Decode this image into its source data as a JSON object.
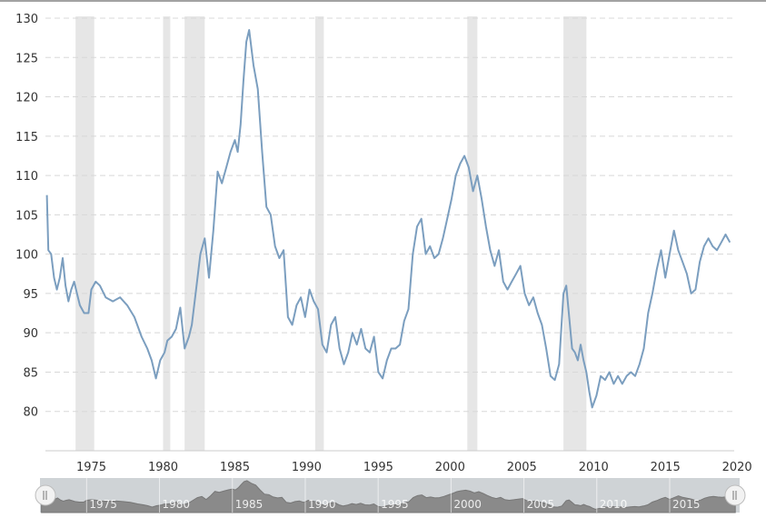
{
  "chart_data": {
    "type": "line",
    "title": "",
    "xlabel": "",
    "ylabel": "",
    "xlim": [
      1971.8,
      2019.8
    ],
    "ylim": [
      75,
      130
    ],
    "y_ticks": [
      80,
      85,
      90,
      95,
      100,
      105,
      110,
      115,
      120,
      125,
      130
    ],
    "x_ticks": [
      1975,
      1980,
      1985,
      1990,
      1995,
      2000,
      2005,
      2010,
      2015,
      2020
    ],
    "y_tick_labels": [
      "80",
      "85",
      "90",
      "95",
      "100",
      "105",
      "110",
      "115",
      "120",
      "125",
      "130"
    ],
    "x_tick_labels": [
      "1975",
      "1980",
      "1985",
      "1990",
      "1995",
      "2000",
      "2005",
      "2010",
      "2015",
      "2020"
    ],
    "grid": "horizontal-dashed",
    "legend": "none",
    "recessions": [
      {
        "start": 1973.9,
        "end": 1975.2
      },
      {
        "start": 1980.0,
        "end": 1980.5
      },
      {
        "start": 1981.5,
        "end": 1982.9
      },
      {
        "start": 1990.6,
        "end": 1991.2
      },
      {
        "start": 2001.2,
        "end": 2001.9
      },
      {
        "start": 2007.9,
        "end": 2009.5
      }
    ],
    "series": [
      {
        "x": [
          1971.9,
          1972.0,
          1972.2,
          1972.4,
          1972.6,
          1972.8,
          1973.0,
          1973.2,
          1973.4,
          1973.6,
          1973.8,
          1974.0,
          1974.2,
          1974.5,
          1974.8,
          1975.0,
          1975.3,
          1975.6,
          1976.0,
          1976.5,
          1977.0,
          1977.5,
          1978.0,
          1978.5,
          1978.9,
          1979.2,
          1979.5,
          1979.8,
          1980.1,
          1980.3,
          1980.6,
          1980.9,
          1981.2,
          1981.5,
          1981.8,
          1982.0,
          1982.3,
          1982.6,
          1982.9,
          1983.2,
          1983.5,
          1983.8,
          1984.1,
          1984.4,
          1984.7,
          1985.0,
          1985.2,
          1985.4,
          1985.6,
          1985.8,
          1986.0,
          1986.3,
          1986.6,
          1986.9,
          1987.2,
          1987.5,
          1987.8,
          1988.1,
          1988.4,
          1988.7,
          1989.0,
          1989.3,
          1989.6,
          1989.9,
          1990.2,
          1990.5,
          1990.8,
          1991.1,
          1991.4,
          1991.7,
          1992.0,
          1992.3,
          1992.6,
          1992.9,
          1993.2,
          1993.5,
          1993.8,
          1994.1,
          1994.4,
          1994.7,
          1995.0,
          1995.3,
          1995.6,
          1995.9,
          1996.2,
          1996.5,
          1996.8,
          1997.1,
          1997.4,
          1997.7,
          1998.0,
          1998.3,
          1998.6,
          1998.9,
          1999.2,
          1999.5,
          1999.8,
          2000.1,
          2000.4,
          2000.7,
          2001.0,
          2001.3,
          2001.6,
          2001.9,
          2002.2,
          2002.5,
          2002.8,
          2003.1,
          2003.4,
          2003.7,
          2004.0,
          2004.3,
          2004.6,
          2004.9,
          2005.2,
          2005.5,
          2005.8,
          2006.1,
          2006.4,
          2006.7,
          2007.0,
          2007.3,
          2007.6,
          2007.9,
          2008.1,
          2008.3,
          2008.5,
          2008.7,
          2008.9,
          2009.1,
          2009.3,
          2009.5,
          2009.7,
          2009.9,
          2010.2,
          2010.5,
          2010.8,
          2011.1,
          2011.4,
          2011.7,
          2012.0,
          2012.3,
          2012.6,
          2012.9,
          2013.2,
          2013.5,
          2013.8,
          2014.1,
          2014.4,
          2014.7,
          2015.0,
          2015.3,
          2015.6,
          2015.9,
          2016.2,
          2016.5,
          2016.8,
          2017.1,
          2017.4,
          2017.7,
          2018.0,
          2018.3,
          2018.6,
          2018.9,
          2019.2,
          2019.5
        ],
        "y": [
          107.5,
          100.5,
          100.0,
          97.0,
          95.5,
          97.0,
          99.5,
          96.0,
          94.0,
          95.5,
          96.5,
          95.0,
          93.5,
          92.5,
          92.5,
          95.5,
          96.5,
          96.0,
          94.5,
          94.0,
          94.5,
          93.5,
          92.0,
          89.5,
          88.0,
          86.5,
          84.2,
          86.5,
          87.5,
          89.0,
          89.5,
          90.5,
          93.2,
          88.0,
          89.5,
          91.0,
          95.5,
          100.0,
          102.0,
          97.0,
          103.0,
          110.5,
          109.0,
          111.0,
          113.0,
          114.5,
          113.0,
          116.5,
          122.0,
          127.0,
          128.5,
          124.0,
          121.0,
          113.0,
          106.0,
          105.0,
          101.0,
          99.5,
          100.5,
          92.0,
          91.0,
          93.5,
          94.5,
          92.0,
          95.5,
          94.0,
          93.0,
          88.5,
          87.5,
          91.0,
          92.0,
          88.0,
          86.0,
          87.5,
          90.0,
          88.5,
          90.5,
          88.0,
          87.5,
          89.5,
          85.0,
          84.2,
          86.5,
          88.0,
          88.0,
          88.5,
          91.5,
          93.0,
          100.0,
          103.5,
          104.5,
          100.0,
          101.0,
          99.5,
          100.0,
          102.0,
          104.5,
          107.0,
          110.0,
          111.5,
          112.5,
          111.0,
          108.0,
          110.0,
          107.0,
          103.5,
          100.5,
          98.5,
          100.5,
          96.5,
          95.5,
          96.5,
          97.5,
          98.5,
          95.0,
          93.5,
          94.5,
          92.5,
          91.0,
          88.0,
          84.5,
          84.0,
          86.0,
          95.0,
          96.0,
          92.0,
          88.0,
          87.5,
          86.5,
          88.5,
          86.5,
          85.0,
          82.5,
          80.5,
          82.0,
          84.5,
          84.0,
          85.0,
          83.5,
          84.5,
          83.5,
          84.5,
          85.0,
          84.5,
          86.0,
          88.0,
          92.5,
          95.0,
          98.0,
          100.5,
          97.0,
          100.0,
          103.0,
          100.5,
          99.0,
          97.5,
          95.0,
          95.5,
          99.0,
          101.0,
          102.0,
          101.0,
          100.5,
          101.5,
          102.5,
          101.5
        ],
        "color": "#7b9ebf"
      }
    ],
    "navigator": {
      "tick_labels": [
        "1975",
        "1980",
        "1985",
        "1990",
        "1995",
        "2000",
        "2005",
        "2010",
        "2015"
      ],
      "tick_values": [
        1975,
        1980,
        1985,
        1990,
        1995,
        2000,
        2005,
        2010,
        2015
      ],
      "xlim": [
        1971.8,
        2019.8
      ]
    },
    "colors": {
      "line": "#7b9ebf",
      "recession": "#e6e6e6",
      "grid": "#d8d8d8",
      "navigator_fill": "#8a8a8a",
      "navigator_bg": "#cfd3d6"
    }
  }
}
